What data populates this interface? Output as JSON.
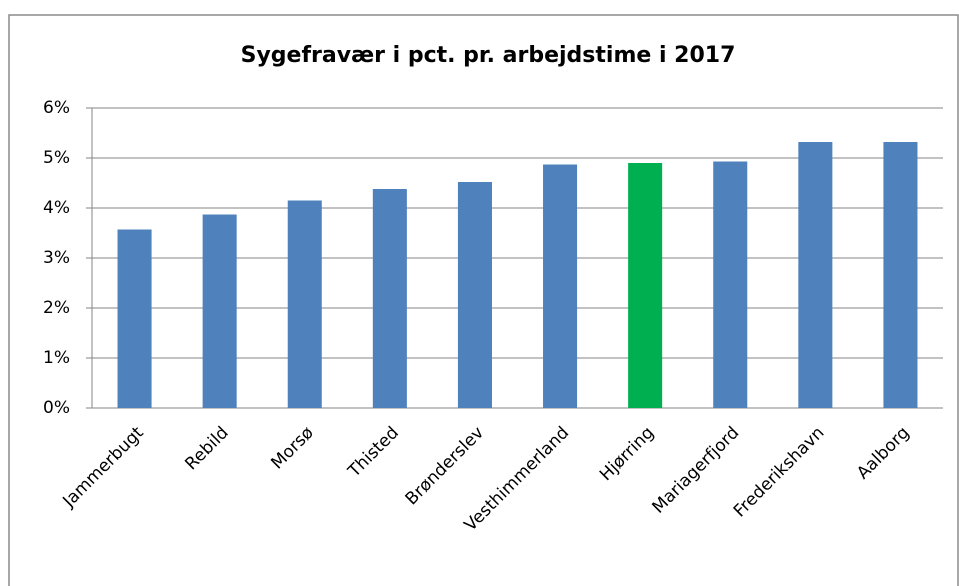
{
  "chart_data": {
    "type": "bar",
    "title": "Sygefravær i pct. pr. arbejdstime i 2017",
    "categories": [
      "Jammerbugt",
      "Rebild",
      "Morsø",
      "Thisted",
      "Brønderslev",
      "Vesthimmerland",
      "Hjørring",
      "Mariagerfjord",
      "Frederikshavn",
      "Aalborg"
    ],
    "values": [
      3.57,
      3.87,
      4.15,
      4.38,
      4.52,
      4.87,
      4.9,
      4.93,
      5.32,
      5.32
    ],
    "colors": [
      "#4f81bd",
      "#4f81bd",
      "#4f81bd",
      "#4f81bd",
      "#4f81bd",
      "#4f81bd",
      "#00b050",
      "#4f81bd",
      "#4f81bd",
      "#4f81bd"
    ],
    "ylim": [
      0,
      6
    ],
    "yticks": [
      {
        "value": 0,
        "label": "0%"
      },
      {
        "value": 1,
        "label": "1%"
      },
      {
        "value": 2,
        "label": "2%"
      },
      {
        "value": 3,
        "label": "3%"
      },
      {
        "value": 4,
        "label": "4%"
      },
      {
        "value": 5,
        "label": "5%"
      },
      {
        "value": 6,
        "label": "6%"
      }
    ],
    "grid": true
  }
}
